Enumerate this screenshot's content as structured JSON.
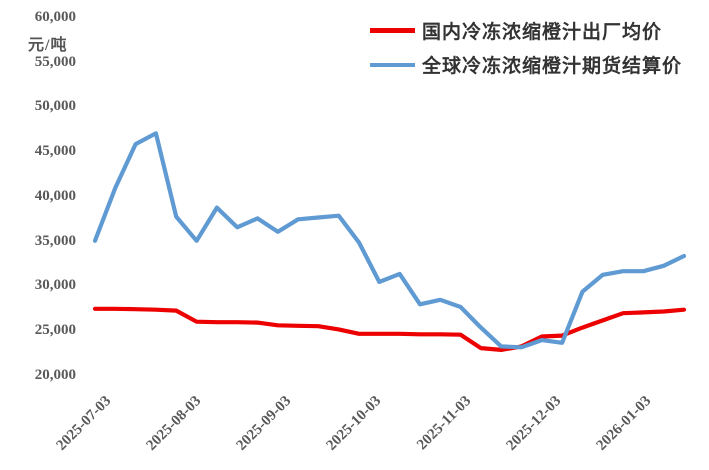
{
  "page": {
    "background": "#ffffff"
  },
  "y_axis": {
    "unit_label": "元/吨",
    "tick_labels": [
      "60,000",
      "55,000",
      "50,000",
      "45,000",
      "40,000",
      "35,000",
      "30,000",
      "25,000",
      "20,000"
    ]
  },
  "x_axis": {
    "tick_labels": [
      "2025-07-03",
      "2025-08-03",
      "2025-09-03",
      "2025-10-03",
      "2025-11-03",
      "2025-12-03",
      "2026-01-03"
    ]
  },
  "legend": [
    {
      "label": "国内冷冻浓缩橙汁出厂均价",
      "color": "#ec0000"
    },
    {
      "label": "全球冷冻浓缩橙汁期货结算价",
      "color": "#5f9ad3"
    }
  ],
  "chart_data": {
    "type": "line",
    "title": "",
    "ylabel": "元/吨",
    "xlabel": "",
    "ylim": [
      20000,
      60000
    ],
    "y_tick_step": 5000,
    "grid": false,
    "legend_position": "top-right",
    "x": [
      "2025-07-03",
      "2025-07-10",
      "2025-07-17",
      "2025-07-24",
      "2025-07-31",
      "2025-08-07",
      "2025-08-14",
      "2025-08-21",
      "2025-08-28",
      "2025-09-04",
      "2025-09-11",
      "2025-09-18",
      "2025-09-25",
      "2025-10-02",
      "2025-10-09",
      "2025-10-16",
      "2025-10-23",
      "2025-10-30",
      "2025-11-06",
      "2025-11-13",
      "2025-11-20",
      "2025-11-27",
      "2025-12-04",
      "2025-12-11",
      "2025-12-18",
      "2025-12-25",
      "2026-01-01",
      "2026-01-08",
      "2026-01-15",
      "2026-01-22"
    ],
    "series": [
      {
        "name": "国内冷冻浓缩橙汁出厂均价",
        "color": "#ec0000",
        "values": [
          27400,
          27400,
          27350,
          27300,
          27200,
          25950,
          25900,
          25900,
          25850,
          25550,
          25500,
          25450,
          25100,
          24600,
          24600,
          24600,
          24550,
          24550,
          24500,
          23000,
          22800,
          23200,
          24300,
          24400,
          25300,
          26100,
          26900,
          27000,
          27100,
          27300
        ]
      },
      {
        "name": "全球冷冻浓缩橙汁期货结算价",
        "color": "#5f9ad3",
        "values": [
          35000,
          40900,
          45800,
          47000,
          37700,
          35000,
          38700,
          36500,
          37500,
          36000,
          37400,
          37600,
          37800,
          34800,
          30400,
          31300,
          27900,
          28400,
          27600,
          25300,
          23200,
          23100,
          23900,
          23600,
          29300,
          31200,
          31600,
          31600,
          32200,
          33300
        ]
      }
    ]
  }
}
